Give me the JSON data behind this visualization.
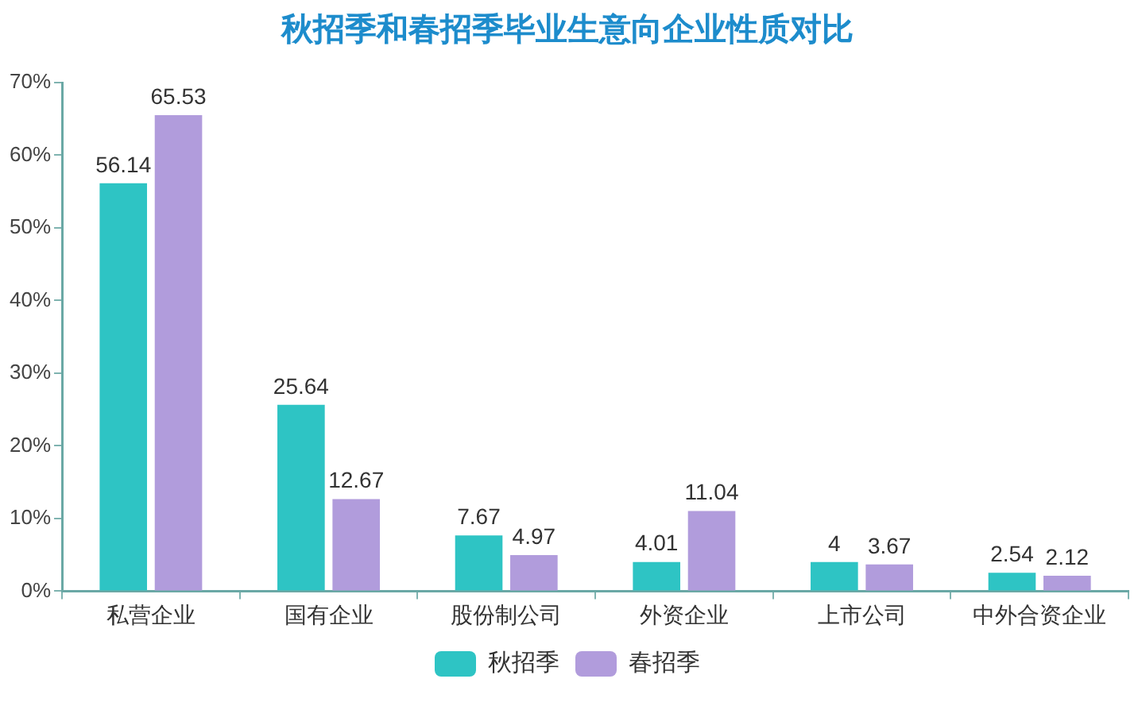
{
  "chart_data": {
    "type": "bar",
    "title": "秋招季和春招季毕业生意向企业性质对比",
    "categories": [
      "私营企业",
      "国有企业",
      "股份制公司",
      "外资企业",
      "上市公司",
      "中外合资企业"
    ],
    "series": [
      {
        "name": "秋招季",
        "color": "#2ec4c4",
        "values": [
          56.14,
          25.64,
          7.67,
          4.01,
          4,
          2.54
        ]
      },
      {
        "name": "春招季",
        "color": "#b19cdc",
        "values": [
          65.53,
          12.67,
          4.97,
          11.04,
          3.67,
          2.12
        ]
      }
    ],
    "ylim": [
      0,
      70
    ],
    "yticks": [
      {
        "value": 0,
        "label": "0%"
      },
      {
        "value": 10,
        "label": "10%"
      },
      {
        "value": 20,
        "label": "20%"
      },
      {
        "value": 30,
        "label": "30%"
      },
      {
        "value": 40,
        "label": "40%"
      },
      {
        "value": 50,
        "label": "50%"
      },
      {
        "value": 60,
        "label": "60%"
      },
      {
        "value": 70,
        "label": "70%"
      }
    ],
    "data_labels": true,
    "grid": false,
    "legend": "bottom"
  }
}
